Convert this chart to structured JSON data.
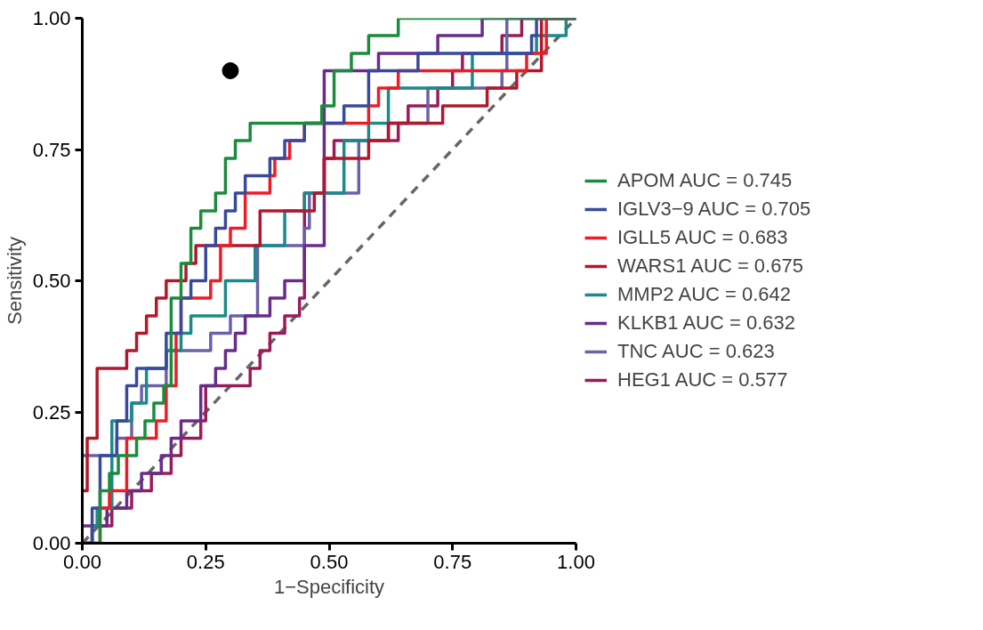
{
  "chart_data": {
    "type": "step",
    "xlabel": "1−Specificity",
    "ylabel": "Sensitivity",
    "xlim": [
      0,
      1
    ],
    "ylim": [
      0,
      1
    ],
    "xticks": [
      {
        "value": 0,
        "label": "0.00"
      },
      {
        "value": 0.25,
        "label": "0.25"
      },
      {
        "value": 0.5,
        "label": "0.50"
      },
      {
        "value": 0.75,
        "label": "0.75"
      },
      {
        "value": 1,
        "label": "1.00"
      }
    ],
    "yticks": [
      {
        "value": 0,
        "label": "0.00"
      },
      {
        "value": 0.25,
        "label": "0.25"
      },
      {
        "value": 0.5,
        "label": "0.50"
      },
      {
        "value": 0.75,
        "label": "0.75"
      },
      {
        "value": 1,
        "label": "1.00"
      }
    ],
    "grid": false,
    "legend": "right",
    "line_style": "solid",
    "series": [
      {
        "type": "line",
        "x": [
          0,
          1
        ],
        "values": [
          0,
          1
        ],
        "color": "#666666",
        "line_style": "dashed"
      },
      {
        "name": "HEG1 AUC = 0.577",
        "color": "#9b1b5a",
        "x": [
          0,
          0.02,
          0.06,
          0.1,
          0.14,
          0.18,
          0.2,
          0.24,
          0.25,
          0.34,
          0.36,
          0.38,
          0.41,
          0.44,
          0.45,
          0.49,
          0.51,
          0.64,
          0.66,
          0.72,
          0.75,
          0.77,
          0.85,
          0.89,
          1
        ],
        "values": [
          0,
          0.033,
          0.067,
          0.1,
          0.133,
          0.167,
          0.2,
          0.233,
          0.3,
          0.333,
          0.367,
          0.4,
          0.433,
          0.467,
          0.667,
          0.733,
          0.767,
          0.8,
          0.833,
          0.867,
          0.9,
          0.933,
          0.967,
          1,
          1
        ]
      },
      {
        "name": "TNC AUC = 0.623",
        "color": "#6a62a8",
        "x": [
          0,
          0.07,
          0.1,
          0.12,
          0.17,
          0.26,
          0.3,
          0.355,
          0.45,
          0.46,
          0.56,
          0.62,
          0.7,
          0.85,
          0.86,
          1
        ],
        "values": [
          0.167,
          0.2,
          0.267,
          0.3,
          0.367,
          0.4,
          0.433,
          0.567,
          0.6,
          0.667,
          0.767,
          0.8,
          0.867,
          0.9,
          1,
          1
        ]
      },
      {
        "name": "KLKB1 AUC = 0.632",
        "color": "#6a2c8a",
        "x": [
          0,
          0.05,
          0.09,
          0.12,
          0.16,
          0.18,
          0.2,
          0.24,
          0.27,
          0.29,
          0.31,
          0.33,
          0.38,
          0.41,
          0.45,
          0.49,
          0.6,
          0.72,
          0.81,
          1
        ],
        "values": [
          0.033,
          0.067,
          0.1,
          0.133,
          0.167,
          0.2,
          0.233,
          0.3,
          0.333,
          0.367,
          0.4,
          0.433,
          0.467,
          0.5,
          0.567,
          0.9,
          0.933,
          0.967,
          1,
          1
        ]
      },
      {
        "name": "MMP2 AUC = 0.642",
        "color": "#1a8a8a",
        "x": [
          0,
          0.02,
          0.03,
          0.06,
          0.1,
          0.13,
          0.17,
          0.2,
          0.22,
          0.29,
          0.33,
          0.35,
          0.41,
          0.45,
          0.53,
          0.58,
          0.62,
          0.79,
          0.92,
          0.98,
          1
        ],
        "values": [
          0,
          0.033,
          0.067,
          0.233,
          0.267,
          0.333,
          0.367,
          0.4,
          0.433,
          0.5,
          0.5,
          0.567,
          0.633,
          0.667,
          0.767,
          0.8,
          0.867,
          0.933,
          0.967,
          1,
          1
        ]
      },
      {
        "name": "WARS1 AUC = 0.675",
        "color": "#b2182b",
        "x": [
          0,
          0.01,
          0.03,
          0.09,
          0.11,
          0.13,
          0.15,
          0.17,
          0.21,
          0.23,
          0.36,
          0.47,
          0.49,
          0.58,
          0.62,
          0.73,
          0.82,
          0.88,
          0.93,
          1
        ],
        "values": [
          0.1,
          0.2,
          0.333,
          0.367,
          0.4,
          0.433,
          0.467,
          0.5,
          0.533,
          0.567,
          0.633,
          0.667,
          0.733,
          0.767,
          0.8,
          0.833,
          0.867,
          0.9,
          1,
          1
        ]
      },
      {
        "name": "IGLL5 AUC = 0.683",
        "color": "#ee1c24",
        "x": [
          0,
          0.036,
          0.055,
          0.09,
          0.15,
          0.17,
          0.19,
          0.2,
          0.26,
          0.28,
          0.3,
          0.33,
          0.38,
          0.39,
          0.42,
          0.45,
          0.58,
          0.6,
          0.64,
          0.9,
          0.94,
          1
        ],
        "values": [
          0,
          0.067,
          0.1,
          0.2,
          0.233,
          0.3,
          0.4,
          0.467,
          0.5,
          0.567,
          0.6,
          0.667,
          0.7,
          0.733,
          0.767,
          0.8,
          0.833,
          0.867,
          0.9,
          0.933,
          1,
          1
        ]
      },
      {
        "name": "IGLV3−9 AUC = 0.705",
        "color": "#3a4a9a",
        "x": [
          0,
          0.02,
          0.036,
          0.07,
          0.09,
          0.11,
          0.17,
          0.2,
          0.22,
          0.25,
          0.27,
          0.29,
          0.31,
          0.33,
          0.38,
          0.41,
          0.45,
          0.53,
          0.58,
          0.68,
          0.91,
          0.92,
          1
        ],
        "values": [
          0,
          0.067,
          0.167,
          0.233,
          0.3,
          0.333,
          0.4,
          0.467,
          0.5,
          0.567,
          0.6,
          0.633,
          0.667,
          0.7,
          0.733,
          0.767,
          0.8,
          0.833,
          0.9,
          0.933,
          0.967,
          1,
          1
        ]
      },
      {
        "name": "APOM AUC = 0.745",
        "color": "#1a8c3c",
        "x": [
          0,
          0.036,
          0.055,
          0.073,
          0.11,
          0.127,
          0.145,
          0.165,
          0.18,
          0.2,
          0.22,
          0.24,
          0.27,
          0.29,
          0.31,
          0.34,
          0.485,
          0.51,
          0.545,
          0.58,
          0.64,
          1
        ],
        "values": [
          0,
          0.1,
          0.133,
          0.167,
          0.2,
          0.233,
          0.267,
          0.3,
          0.467,
          0.533,
          0.6,
          0.633,
          0.667,
          0.733,
          0.767,
          0.8,
          0.833,
          0.9,
          0.933,
          0.967,
          1,
          1
        ]
      },
      {
        "type": "scatter",
        "x": [
          0.3
        ],
        "values": [
          0.9
        ],
        "color": "#000000",
        "marker": "circle"
      }
    ]
  }
}
